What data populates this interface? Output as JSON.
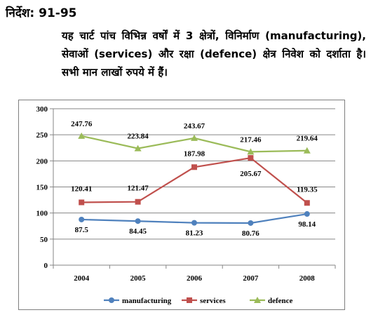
{
  "heading": "निर्देश: 91-95",
  "description": "यह चार्ट पांच विभिन्न वर्षों में 3 क्षेत्रों, विनिर्माण (manufacturing), सेवाओं (services) और रक्षा (defence) क्षेत्र निवेश को दर्शाता है। सभी मान लाखों रुपये में हैं।",
  "chart_data": {
    "type": "line",
    "x": [
      "2004",
      "2005",
      "2006",
      "2007",
      "2008"
    ],
    "ylim": [
      0,
      300
    ],
    "yticks": [
      0,
      50,
      100,
      150,
      200,
      250,
      300
    ],
    "grid": true,
    "legend_position": "bottom",
    "series": [
      {
        "name": "manufacturing",
        "color": "#4f81bd",
        "marker": "circle",
        "values": [
          87.5,
          84.45,
          81.23,
          80.76,
          98.14
        ],
        "labels": [
          "87.5",
          "84.45",
          "81.23",
          "80.76",
          "98.14"
        ]
      },
      {
        "name": "services",
        "color": "#c0504d",
        "marker": "square",
        "values": [
          120.41,
          121.47,
          187.98,
          205.67,
          119.35
        ],
        "labels": [
          "120.41",
          "121.47",
          "187.98",
          "205.67",
          "119.35"
        ]
      },
      {
        "name": "defence",
        "color": "#9bbb59",
        "marker": "triangle",
        "values": [
          247.76,
          223.84,
          243.67,
          217.46,
          219.64
        ],
        "labels": [
          "247.76",
          "223.84",
          "243.67",
          "217.46",
          "219.64"
        ]
      }
    ]
  }
}
